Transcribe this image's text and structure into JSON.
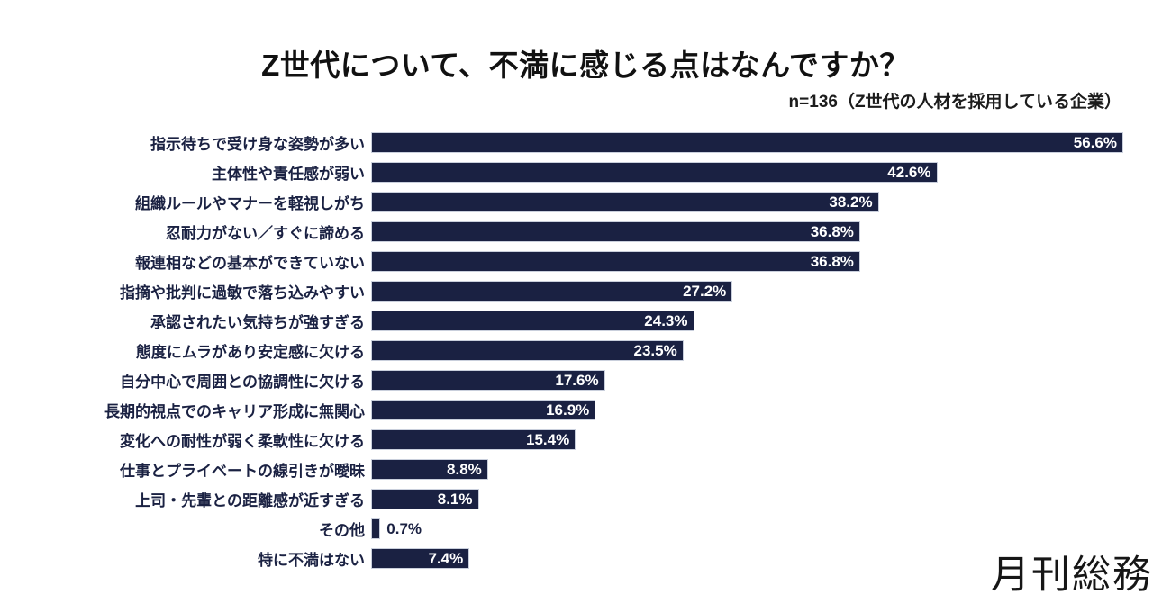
{
  "chart_data": {
    "type": "bar",
    "orientation": "horizontal",
    "title": "Z世代について、不満に感じる点はなんですか？",
    "subtitle": "n=136（Z世代の人材を採用している企業）",
    "unit": "%",
    "xlabel": "",
    "ylabel": "",
    "xlim": [
      0,
      60
    ],
    "grid": false,
    "legend": null,
    "value_labels_position": "inside-end",
    "bar_color": "#1a2142",
    "category_label_color": "#1a2142",
    "value_label_inside_color": "#ffffff",
    "value_label_outside_color": "#1a2142",
    "categories": [
      "指示待ちで受け身な姿勢が多い",
      "主体性や責任感が弱い",
      "組織ルールやマナーを軽視しがち",
      "忍耐力がない／すぐに諦める",
      "報連相などの基本ができていない",
      "指摘や批判に過敏で落ち込みやすい",
      "承認されたい気持ちが強すぎる",
      "態度にムラがあり安定感に欠ける",
      "自分中心で周囲との協調性に欠ける",
      "長期的視点でのキャリア形成に無関心",
      "変化への耐性が弱く柔軟性に欠ける",
      "仕事とプライベートの線引きが曖昧",
      "上司・先輩との距離感が近すぎる",
      "その他",
      "特に不満はない"
    ],
    "values": [
      56.6,
      42.6,
      38.2,
      36.8,
      36.8,
      27.2,
      24.3,
      23.5,
      17.6,
      16.9,
      15.4,
      8.8,
      8.1,
      0.7,
      7.4
    ]
  },
  "footer": {
    "logo_text": "月刊総務"
  }
}
